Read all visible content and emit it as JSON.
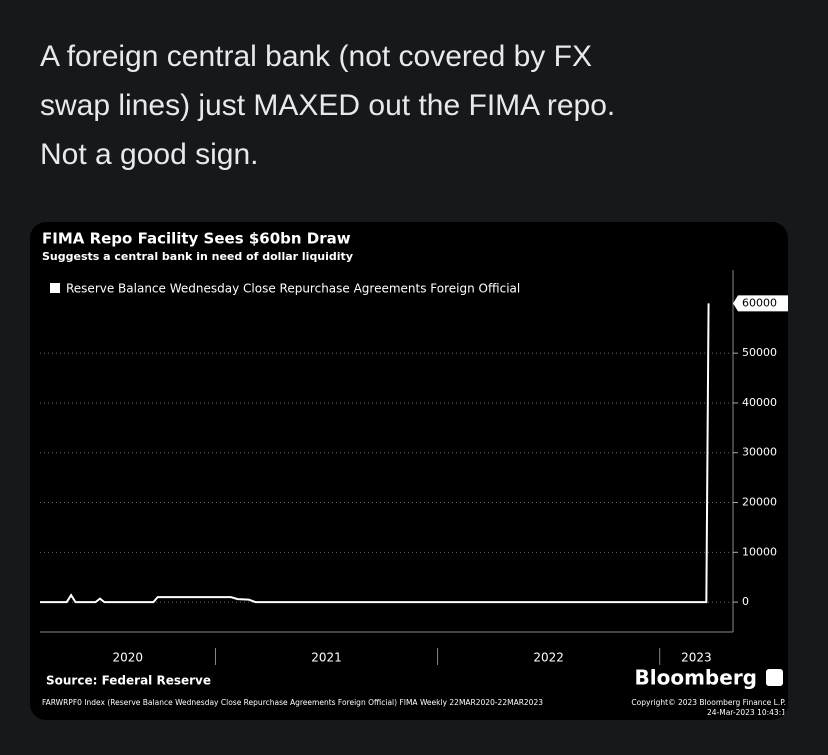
{
  "tweet": {
    "text_lines": [
      "A foreign central bank (not covered by FX",
      "swap lines) just MAXED out the FIMA repo.",
      "Not a good sign."
    ]
  },
  "chart_data": {
    "type": "line",
    "title": "FIMA Repo Facility Sees $60bn Draw",
    "subtitle": "Suggests a central bank in need of dollar liquidity",
    "x": [
      2020.21,
      2020.33,
      2020.35,
      2020.37,
      2020.46,
      2020.48,
      2020.5,
      2020.72,
      2020.74,
      2021.07,
      2021.1,
      2021.15,
      2021.18,
      2023.21,
      2023.22
    ],
    "series": [
      {
        "name": "Reserve Balance Wednesday Close Repurchase Agreements Foreign Official",
        "color": "#ffffff",
        "values": [
          0,
          0,
          1400,
          0,
          0,
          700,
          0,
          0,
          1000,
          1000,
          600,
          500,
          0,
          0,
          60000
        ]
      }
    ],
    "xlim": [
      2020.21,
      2023.33
    ],
    "xticks": [
      2021,
      2022,
      2023
    ],
    "year_labels": [
      "2020",
      "2021",
      "2022",
      "2023"
    ],
    "ylim": [
      -6000,
      66700
    ],
    "yticks": [
      0,
      10000,
      20000,
      30000,
      40000,
      50000
    ],
    "grid": true,
    "source": "Source: Federal Reserve",
    "brand": "Bloomberg",
    "footnote": "FARWRPF0 Index (Reserve Balance Wednesday Close Repurchase Agreements Foreign Official) FIMA  Weekly 22MAR2020-22MAR2023",
    "copyright": "Copyright© 2023 Bloomberg Finance L.P.",
    "timestamp": "24-Mar-2023 10:43:1"
  }
}
